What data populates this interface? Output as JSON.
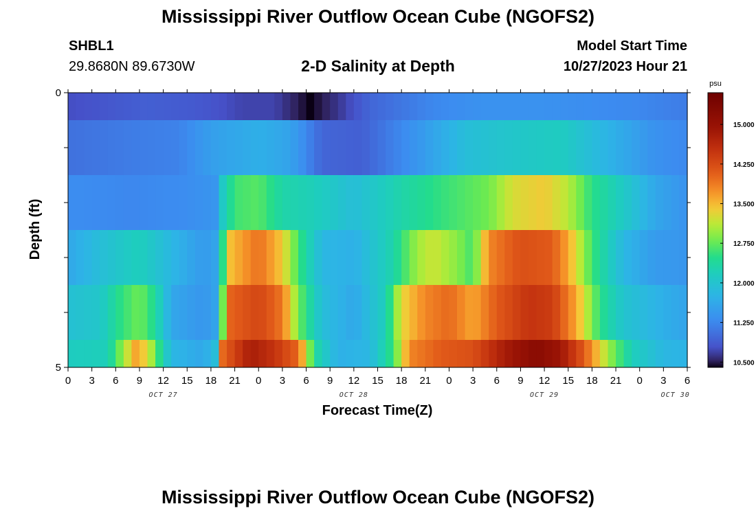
{
  "title": "Mississippi River Outflow Ocean Cube (NGOFS2)",
  "title_repeat": "Mississippi River Outflow Ocean Cube (NGOFS2)",
  "station": {
    "id": "SHBL1",
    "coords": "29.8680N  89.6730W"
  },
  "subtitle": "2-D Salinity at Depth",
  "model_start": {
    "label": "Model Start Time",
    "value": "10/27/2023 Hour 21"
  },
  "chart_data": {
    "type": "heatmap",
    "title": "2-D Salinity at Depth",
    "xlabel": "Forecast Time(Z)",
    "ylabel": "Depth (ft)",
    "x_hours": [
      0,
      78
    ],
    "x_tick_labels": [
      "0",
      "3",
      "6",
      "9",
      "12",
      "15",
      "18",
      "21",
      "0",
      "3",
      "6",
      "9",
      "12",
      "15",
      "18",
      "21",
      "0",
      "3",
      "6",
      "9",
      "12",
      "15",
      "18",
      "21",
      "0",
      "3",
      "6"
    ],
    "date_labels": [
      {
        "label": "OCT 27",
        "x_hour": 12
      },
      {
        "label": "OCT 28",
        "x_hour": 36
      },
      {
        "label": "OCT 29",
        "x_hour": 60
      },
      {
        "label": "OCT 30",
        "x_hour": 76.5
      }
    ],
    "y_tick_labels": [
      "0",
      "5"
    ],
    "ylim": [
      0,
      5
    ],
    "colorbar": {
      "unit": "psu",
      "min": 10.4,
      "max": 15.6,
      "ticks": [
        "10.500",
        "11.250",
        "12.000",
        "12.750",
        "13.500",
        "14.250",
        "15.000"
      ]
    },
    "layers": [
      {
        "depth_top": 0.0,
        "depth_bottom": 0.5,
        "keypoints": [
          [
            0,
            10.75
          ],
          [
            10,
            10.9
          ],
          [
            16,
            10.85
          ],
          [
            22,
            10.7
          ],
          [
            26,
            10.7
          ],
          [
            29,
            10.5
          ],
          [
            30.5,
            10.4
          ],
          [
            32,
            10.5
          ],
          [
            35,
            10.7
          ],
          [
            38,
            10.95
          ],
          [
            42,
            11.1
          ],
          [
            46,
            11.25
          ],
          [
            52,
            11.35
          ],
          [
            60,
            11.35
          ],
          [
            66,
            11.3
          ],
          [
            72,
            11.25
          ],
          [
            78,
            11.15
          ]
        ]
      },
      {
        "depth_top": 0.5,
        "depth_bottom": 1.5,
        "keypoints": [
          [
            0,
            11.05
          ],
          [
            8,
            11.15
          ],
          [
            14,
            11.2
          ],
          [
            18,
            11.5
          ],
          [
            24,
            11.7
          ],
          [
            28,
            11.55
          ],
          [
            32,
            10.95
          ],
          [
            37,
            10.9
          ],
          [
            44,
            11.4
          ],
          [
            50,
            11.9
          ],
          [
            56,
            12.05
          ],
          [
            62,
            12.15
          ],
          [
            68,
            11.75
          ],
          [
            74,
            11.35
          ],
          [
            78,
            11.25
          ]
        ]
      },
      {
        "depth_top": 1.5,
        "depth_bottom": 2.5,
        "keypoints": [
          [
            0,
            11.3
          ],
          [
            8,
            11.25
          ],
          [
            15,
            11.3
          ],
          [
            18.5,
            11.4
          ],
          [
            19.5,
            12.1
          ],
          [
            21,
            12.6
          ],
          [
            24,
            12.7
          ],
          [
            27,
            12.3
          ],
          [
            31,
            12.2
          ],
          [
            36,
            11.9
          ],
          [
            42,
            12.3
          ],
          [
            47,
            12.55
          ],
          [
            53,
            12.8
          ],
          [
            56,
            13.25
          ],
          [
            60,
            13.4
          ],
          [
            63,
            13.1
          ],
          [
            66,
            12.5
          ],
          [
            70,
            12.1
          ],
          [
            74,
            11.6
          ],
          [
            78,
            11.35
          ]
        ]
      },
      {
        "depth_top": 2.5,
        "depth_bottom": 3.5,
        "keypoints": [
          [
            0,
            11.6
          ],
          [
            4,
            11.9
          ],
          [
            9,
            12.2
          ],
          [
            13,
            11.8
          ],
          [
            17,
            11.45
          ],
          [
            19,
            11.6
          ],
          [
            20,
            13.4
          ],
          [
            24,
            13.95
          ],
          [
            27,
            13.4
          ],
          [
            29,
            12.6
          ],
          [
            32,
            11.8
          ],
          [
            36,
            11.7
          ],
          [
            41,
            12.3
          ],
          [
            44,
            13.0
          ],
          [
            46,
            13.2
          ],
          [
            49,
            12.9
          ],
          [
            51,
            12.6
          ],
          [
            53,
            13.8
          ],
          [
            57,
            14.2
          ],
          [
            61,
            14.1
          ],
          [
            63,
            13.6
          ],
          [
            66,
            12.6
          ],
          [
            70,
            11.8
          ],
          [
            74,
            11.45
          ],
          [
            78,
            11.4
          ]
        ]
      },
      {
        "depth_top": 3.5,
        "depth_bottom": 4.5,
        "keypoints": [
          [
            0,
            11.95
          ],
          [
            4,
            12.05
          ],
          [
            6.5,
            12.5
          ],
          [
            9,
            12.8
          ],
          [
            11,
            12.4
          ],
          [
            13,
            11.6
          ],
          [
            17,
            11.4
          ],
          [
            19,
            11.6
          ],
          [
            20,
            14.0
          ],
          [
            24,
            14.3
          ],
          [
            27,
            13.9
          ],
          [
            29,
            12.8
          ],
          [
            32,
            11.9
          ],
          [
            36,
            11.6
          ],
          [
            40,
            12.2
          ],
          [
            42,
            13.3
          ],
          [
            45,
            13.8
          ],
          [
            48,
            14.0
          ],
          [
            51,
            13.6
          ],
          [
            54,
            14.1
          ],
          [
            58,
            14.5
          ],
          [
            61,
            14.4
          ],
          [
            64,
            13.6
          ],
          [
            67,
            12.5
          ],
          [
            70,
            12.0
          ],
          [
            74,
            11.75
          ],
          [
            78,
            11.55
          ]
        ]
      },
      {
        "depth_top": 4.5,
        "depth_bottom": 5.0,
        "keypoints": [
          [
            0,
            12.15
          ],
          [
            5,
            12.2
          ],
          [
            7,
            13.0
          ],
          [
            8.5,
            13.6
          ],
          [
            10,
            13.3
          ],
          [
            11.5,
            12.5
          ],
          [
            13,
            11.8
          ],
          [
            17,
            11.6
          ],
          [
            18.5,
            11.9
          ],
          [
            19.5,
            14.0
          ],
          [
            23,
            14.8
          ],
          [
            26,
            14.5
          ],
          [
            29,
            14.0
          ],
          [
            31,
            12.4
          ],
          [
            34,
            11.7
          ],
          [
            38,
            11.8
          ],
          [
            41,
            12.6
          ],
          [
            43,
            13.8
          ],
          [
            47,
            14.1
          ],
          [
            51,
            14.2
          ],
          [
            55,
            14.8
          ],
          [
            59,
            15.2
          ],
          [
            62,
            14.9
          ],
          [
            65,
            14.1
          ],
          [
            68,
            13.0
          ],
          [
            71,
            12.2
          ],
          [
            75,
            11.8
          ],
          [
            78,
            11.75
          ]
        ]
      }
    ]
  }
}
